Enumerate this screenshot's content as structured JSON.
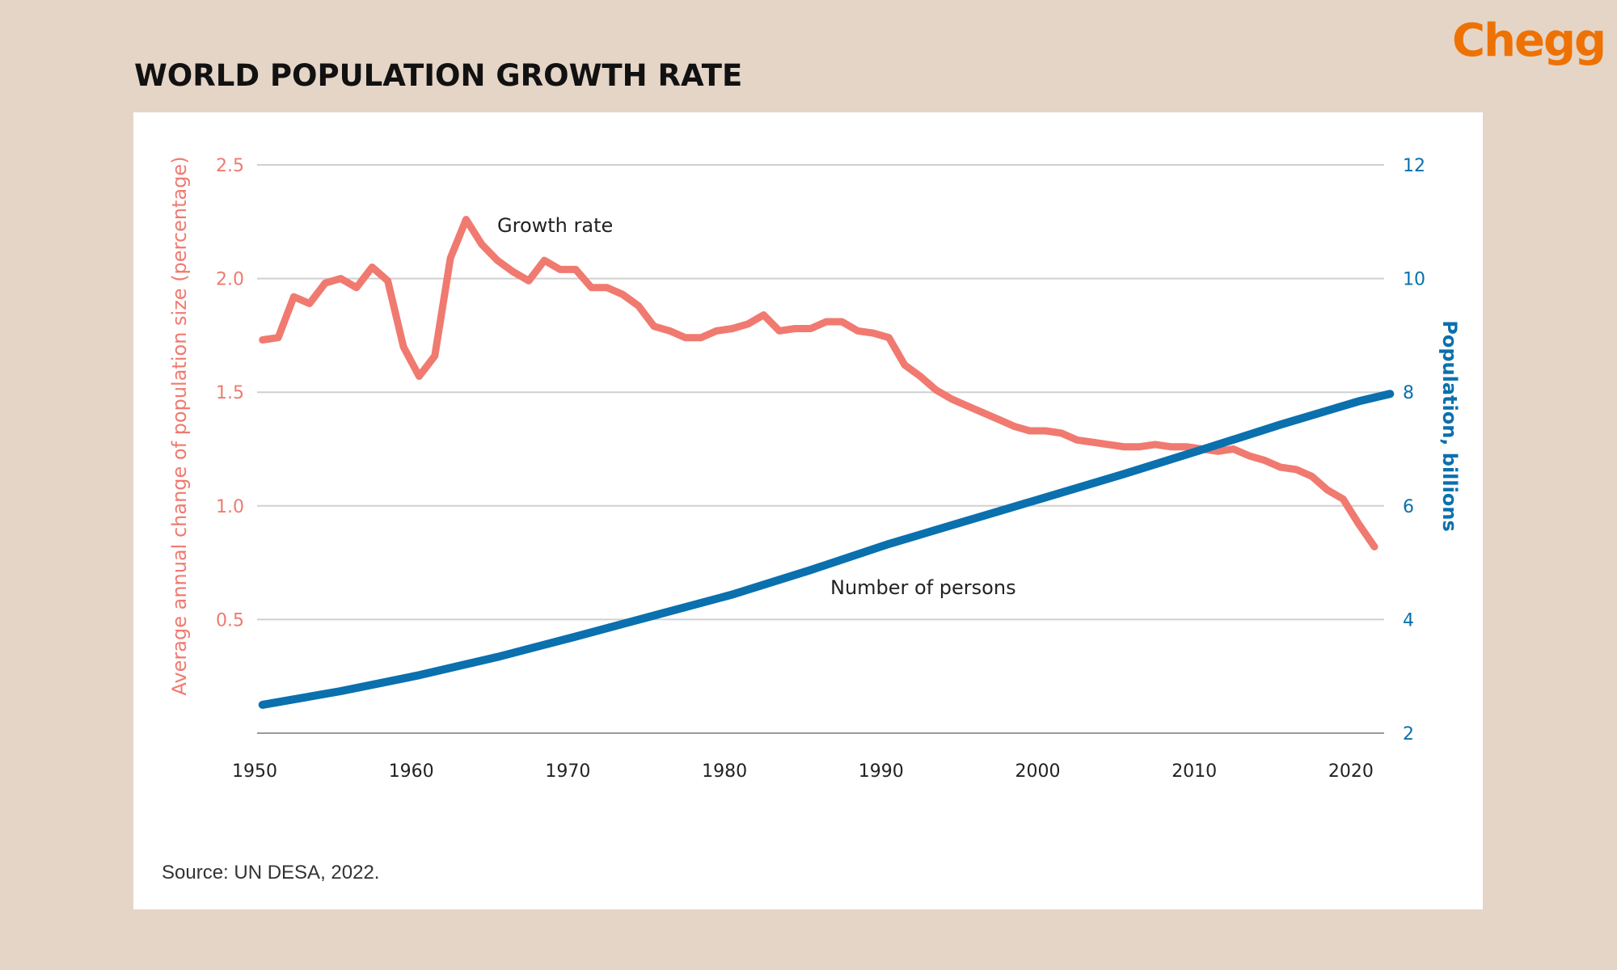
{
  "header": {
    "title": "WORLD POPULATION GROWTH RATE",
    "logo_text": "Chegg"
  },
  "colors": {
    "background": "#e5d5c7",
    "growth_rate": "#f07a70",
    "population": "#0a70ae",
    "logo": "#ee7203",
    "grid": "#d0d0d0"
  },
  "source": "Source: UN DESA, 2022.",
  "chart_data": {
    "type": "line",
    "title": "",
    "xlabel": "",
    "ylabel_left": "Average annual change of population size (percentage)",
    "ylabel_right": "Population, billions",
    "xlim": [
      1950,
      2022
    ],
    "ylim_left": [
      0,
      2.5
    ],
    "ylim_right": [
      2,
      12
    ],
    "x_ticks": [
      "1950",
      "1960",
      "1970",
      "1980",
      "1990",
      "2000",
      "2010",
      "2020"
    ],
    "y_ticks_left": [
      "2.5",
      "2.0",
      "1.5",
      "1.0",
      "0.5"
    ],
    "y_ticks_right": [
      "12",
      "10",
      "8",
      "6",
      "4",
      "2"
    ],
    "grid": true,
    "series": [
      {
        "name": "Growth rate",
        "axis": "left",
        "x": [
          1950,
          1951,
          1952,
          1953,
          1954,
          1955,
          1956,
          1957,
          1958,
          1959,
          1960,
          1961,
          1962,
          1963,
          1964,
          1965,
          1966,
          1967,
          1968,
          1969,
          1970,
          1971,
          1972,
          1973,
          1974,
          1975,
          1976,
          1977,
          1978,
          1979,
          1980,
          1981,
          1982,
          1983,
          1984,
          1985,
          1986,
          1987,
          1988,
          1989,
          1990,
          1991,
          1992,
          1993,
          1994,
          1995,
          1996,
          1997,
          1998,
          1999,
          2000,
          2001,
          2002,
          2003,
          2004,
          2005,
          2006,
          2007,
          2008,
          2009,
          2010,
          2011,
          2012,
          2013,
          2014,
          2015,
          2016,
          2017,
          2018,
          2019,
          2020,
          2021
        ],
        "values": [
          1.73,
          1.74,
          1.92,
          1.89,
          1.98,
          2.0,
          1.96,
          2.05,
          1.99,
          1.7,
          1.57,
          1.66,
          2.09,
          2.26,
          2.15,
          2.08,
          2.03,
          1.99,
          2.08,
          2.04,
          2.04,
          1.96,
          1.96,
          1.93,
          1.88,
          1.79,
          1.77,
          1.74,
          1.74,
          1.77,
          1.78,
          1.8,
          1.84,
          1.77,
          1.78,
          1.78,
          1.81,
          1.81,
          1.77,
          1.76,
          1.74,
          1.62,
          1.57,
          1.51,
          1.47,
          1.44,
          1.41,
          1.38,
          1.35,
          1.33,
          1.33,
          1.32,
          1.29,
          1.28,
          1.27,
          1.26,
          1.26,
          1.27,
          1.26,
          1.26,
          1.25,
          1.24,
          1.25,
          1.22,
          1.2,
          1.17,
          1.16,
          1.13,
          1.07,
          1.03,
          0.92,
          0.82
        ]
      },
      {
        "name": "Number of persons",
        "axis": "right",
        "x": [
          1950,
          1955,
          1960,
          1965,
          1970,
          1975,
          1980,
          1985,
          1990,
          1995,
          2000,
          2005,
          2010,
          2015,
          2020,
          2022
        ],
        "values": [
          2.5,
          2.74,
          3.02,
          3.34,
          3.7,
          4.07,
          4.44,
          4.87,
          5.33,
          5.74,
          6.15,
          6.56,
          6.99,
          7.43,
          7.84,
          7.97
        ]
      }
    ]
  }
}
